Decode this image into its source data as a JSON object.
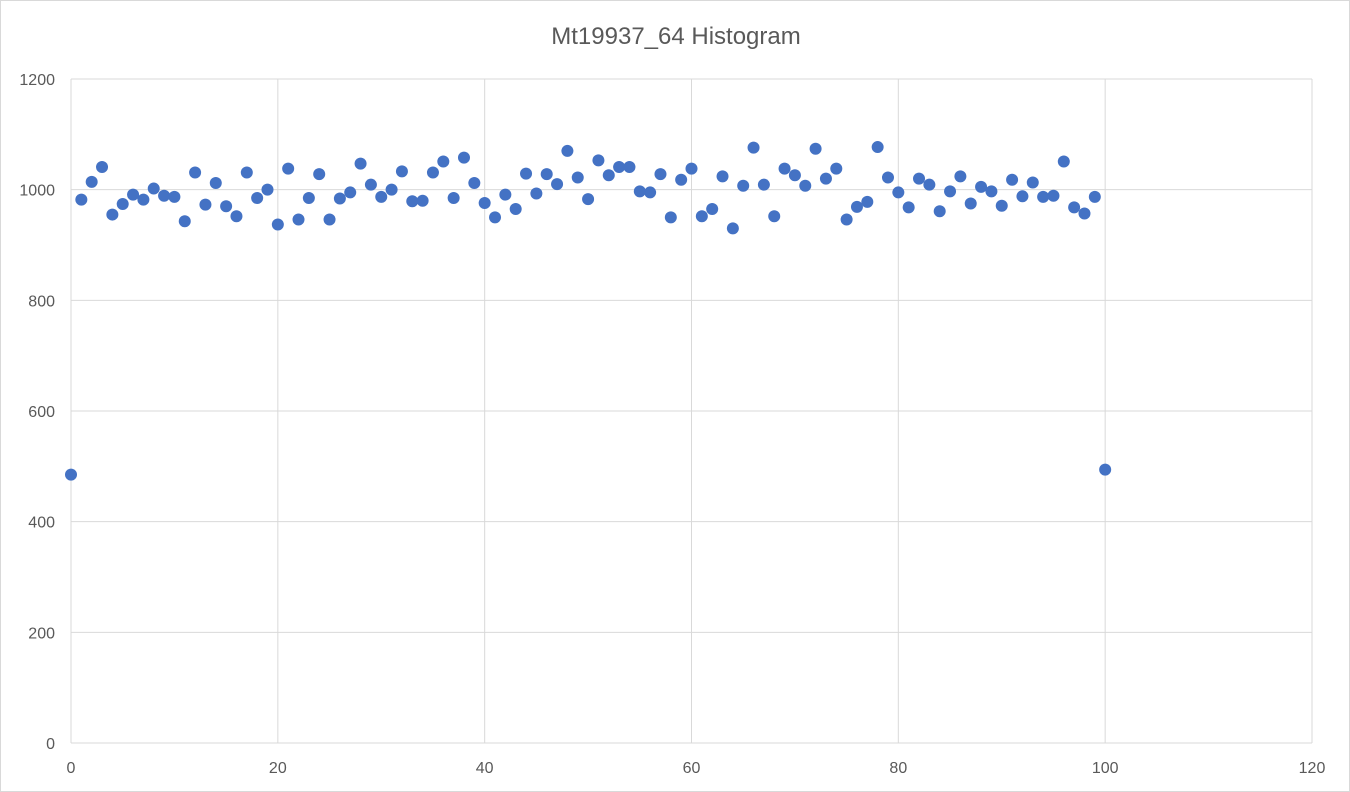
{
  "chart_data": {
    "type": "scatter",
    "title": "Mt19937_64 Histogram",
    "xlabel": "",
    "ylabel": "",
    "xlim": [
      0,
      120
    ],
    "ylim": [
      0,
      1200
    ],
    "x_ticks": [
      "0",
      "20",
      "40",
      "60",
      "80",
      "100",
      "120"
    ],
    "y_ticks": [
      "0",
      "200",
      "400",
      "600",
      "800",
      "1000",
      "1200"
    ],
    "grid": true,
    "legend": "none",
    "marker_color": "#4472c4",
    "series": [
      {
        "x": [
          0,
          1,
          2,
          3,
          4,
          5,
          6,
          7,
          8,
          9,
          10,
          11,
          12,
          13,
          14,
          15,
          16,
          17,
          18,
          19,
          20,
          21,
          22,
          23,
          24,
          25,
          26,
          27,
          28,
          29,
          30,
          31,
          32,
          33,
          34,
          35,
          36,
          37,
          38,
          39,
          40,
          41,
          42,
          43,
          44,
          45,
          46,
          47,
          48,
          49,
          50,
          51,
          52,
          53,
          54,
          55,
          56,
          57,
          58,
          59,
          60,
          61,
          62,
          63,
          64,
          65,
          66,
          67,
          68,
          69,
          70,
          71,
          72,
          73,
          74,
          75,
          76,
          77,
          78,
          79,
          80,
          81,
          82,
          83,
          84,
          85,
          86,
          87,
          88,
          89,
          90,
          91,
          92,
          93,
          94,
          95,
          96,
          97,
          98,
          99,
          100
        ],
        "y": [
          485,
          982,
          1014,
          1041,
          955,
          974,
          991,
          982,
          1002,
          989,
          987,
          943,
          1031,
          973,
          1012,
          970,
          952,
          1031,
          985,
          1000,
          937,
          1038,
          946,
          985,
          1028,
          946,
          984,
          995,
          1047,
          1009,
          987,
          1000,
          1033,
          979,
          980,
          1031,
          1051,
          985,
          1058,
          1012,
          976,
          950,
          991,
          965,
          1029,
          993,
          1028,
          1010,
          1070,
          1022,
          983,
          1053,
          1026,
          1041,
          1041,
          997,
          995,
          1028,
          950,
          1018,
          1038,
          952,
          965,
          1024,
          930,
          1007,
          1076,
          1009,
          952,
          1038,
          1026,
          1007,
          1074,
          1020,
          1038,
          946,
          969,
          978,
          1077,
          1022,
          995,
          968,
          1020,
          1009,
          961,
          997,
          1024,
          975,
          1005,
          997,
          971,
          1018,
          988,
          1013,
          987,
          989,
          1051,
          968,
          957,
          987,
          494
        ]
      }
    ]
  }
}
